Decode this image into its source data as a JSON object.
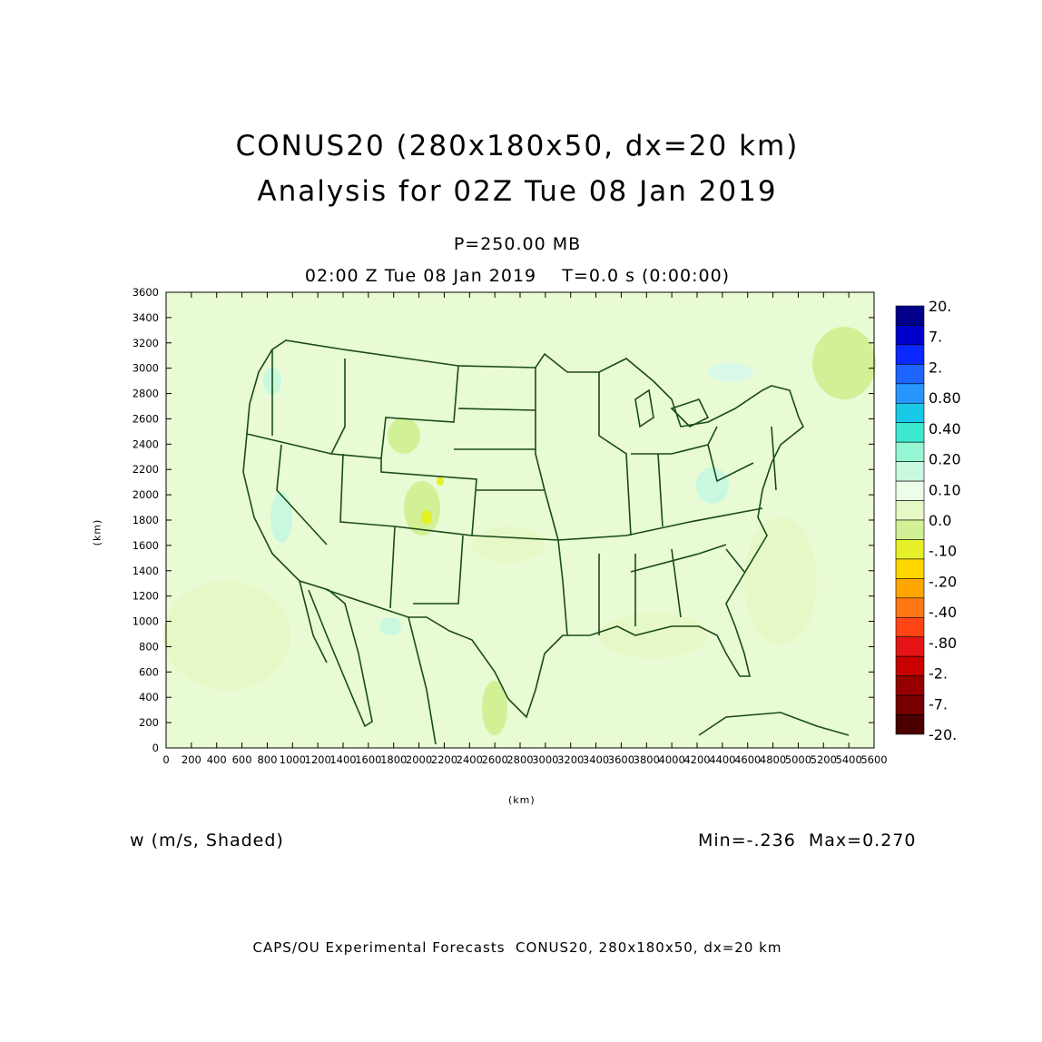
{
  "header": {
    "title_line1": "CONUS20 (280x180x50, dx=20 km)",
    "title_line2": "Analysis for 02Z Tue 08 Jan 2019",
    "level": "P=250.00 MB",
    "valid_time": "02:00 Z Tue 08 Jan 2019    T=0.0 s (0:00:00)"
  },
  "variable_label": "w (m/s, Shaded)",
  "min_max": "Min=-.236  Max=0.270",
  "footer": "CAPS/OU Experimental Forecasts  CONUS20, 280x180x50, dx=20 km",
  "axes": {
    "x_label": "(km)",
    "y_label": "(km)",
    "x_ticks": [
      "0",
      "200",
      "400",
      "600",
      "800",
      "1000",
      "1200",
      "1400",
      "1600",
      "1800",
      "2000",
      "2200",
      "2400",
      "2600",
      "2800",
      "3000",
      "3200",
      "3400",
      "3600",
      "3800",
      "4000",
      "4200",
      "4400",
      "4600",
      "4800",
      "5000",
      "5200",
      "5400",
      "5600"
    ],
    "y_ticks": [
      "0",
      "200",
      "400",
      "600",
      "800",
      "1000",
      "1200",
      "1400",
      "1600",
      "1800",
      "2000",
      "2200",
      "2400",
      "2600",
      "2800",
      "3000",
      "3200",
      "3400",
      "3600"
    ]
  },
  "colorbar": {
    "labels": [
      "20.",
      "7.",
      "2.",
      "0.80",
      "0.40",
      "0.20",
      "0.10",
      "0.0",
      "-.10",
      "-.20",
      "-.40",
      "-.80",
      "-2.",
      "-7.",
      "-20."
    ],
    "colors": [
      "#00008b",
      "#0000cd",
      "#0a28ff",
      "#1e64ff",
      "#2896ff",
      "#19c8e6",
      "#3ce8d0",
      "#96f5d2",
      "#c8f8e0",
      "#ecfde8",
      "#e6f8c6",
      "#d2f096",
      "#e6f028",
      "#ffd700",
      "#ffa500",
      "#ff7814",
      "#ff4614",
      "#e61414",
      "#c80000",
      "#960000",
      "#780000",
      "#4b0000"
    ]
  },
  "map": {
    "background_color": "#e8fbd4",
    "boundary_color": "#1a4a1a"
  }
}
